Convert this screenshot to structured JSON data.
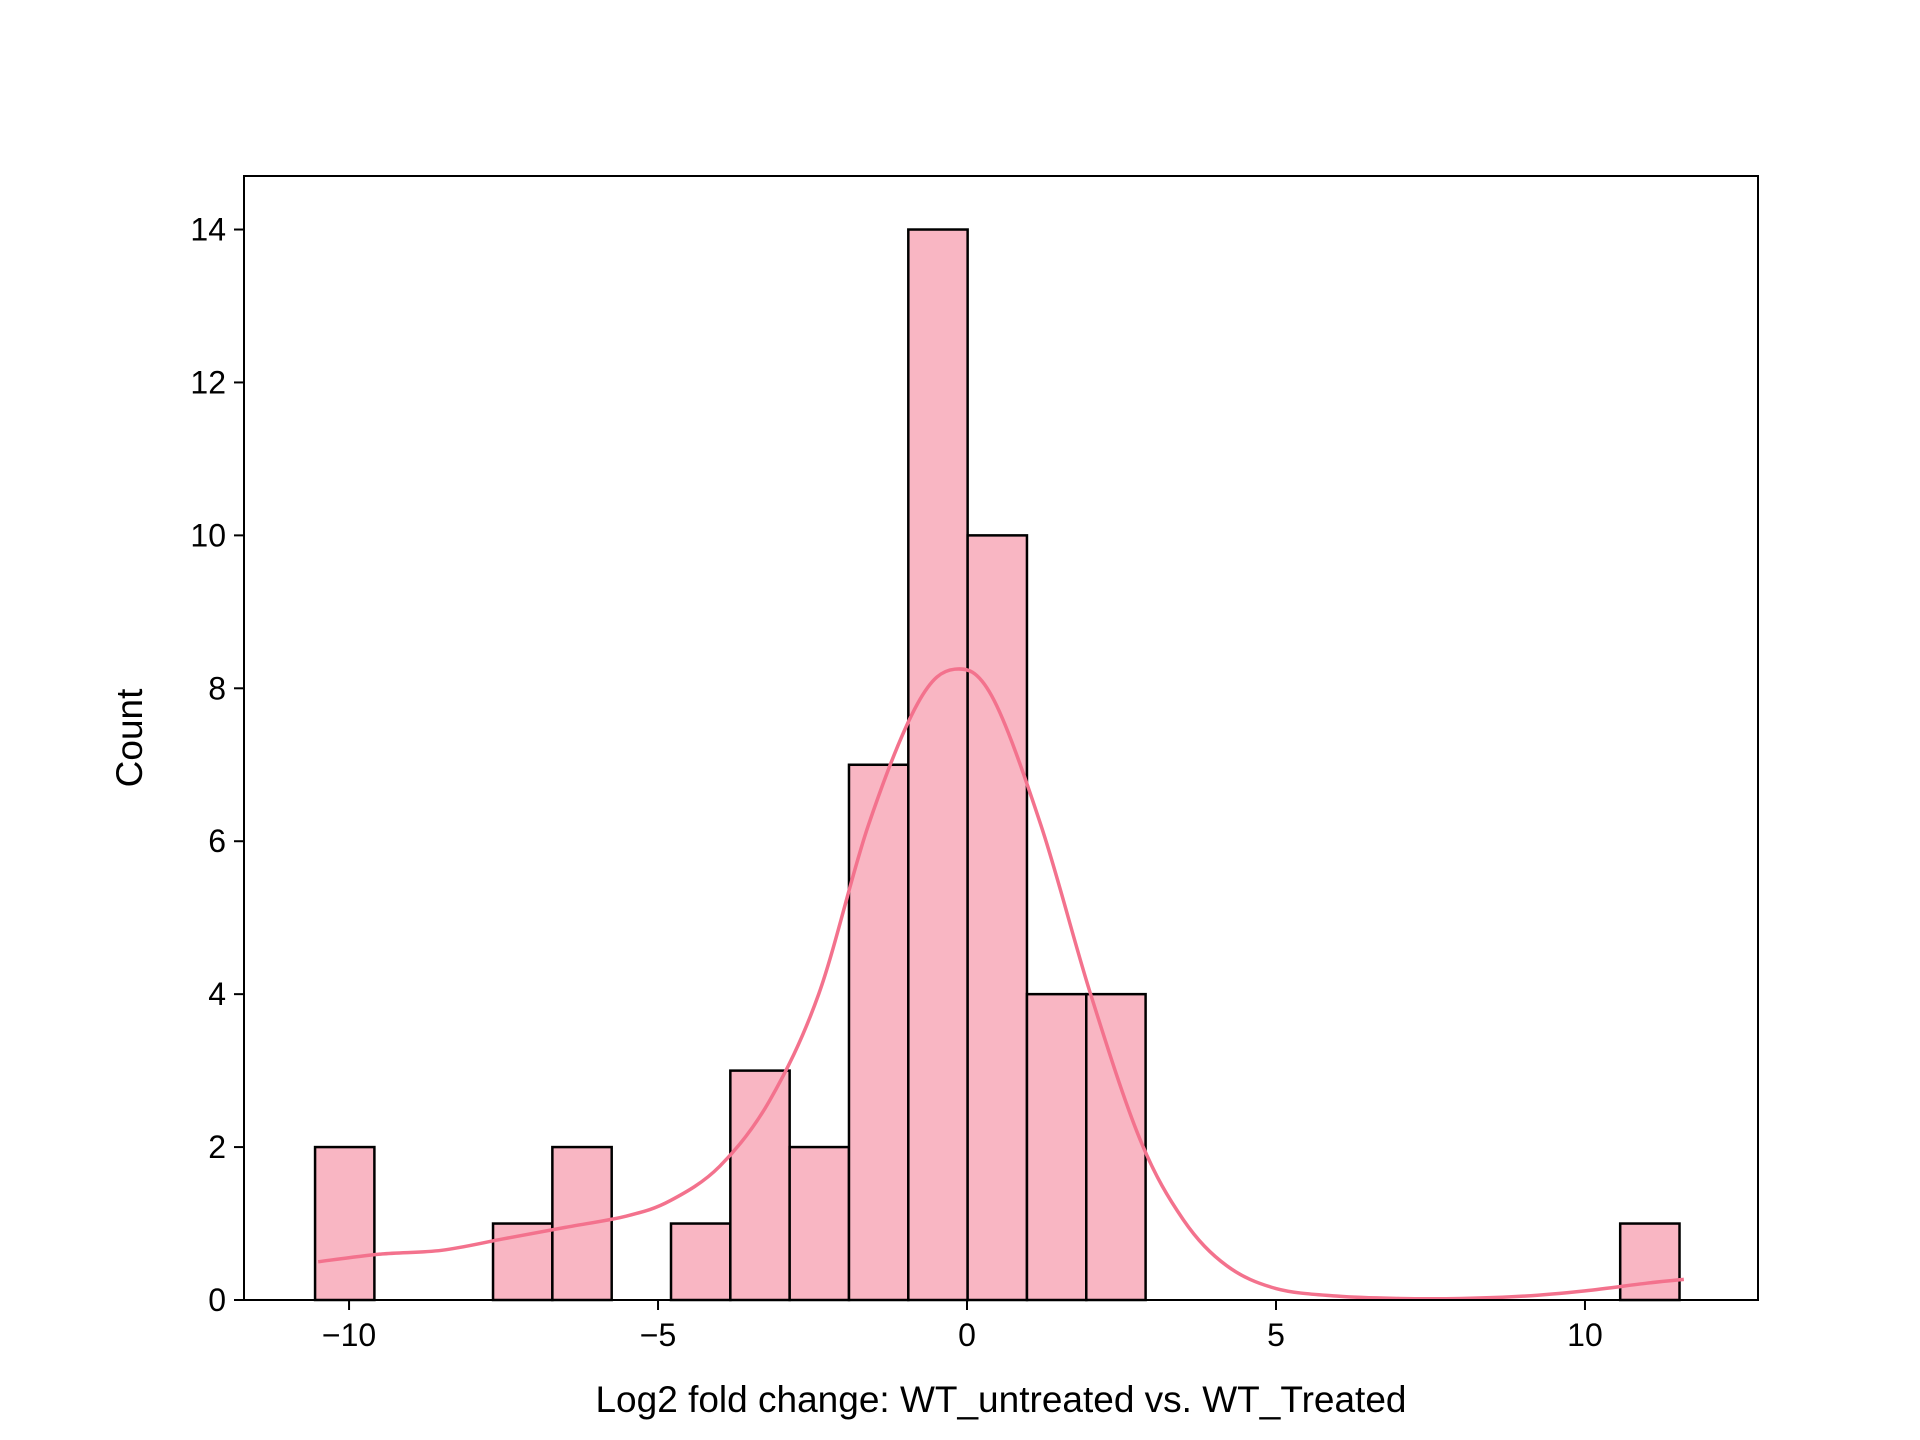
{
  "chart_data": {
    "type": "bar",
    "subtype": "histogram-with-kde",
    "title": "",
    "xlabel": "Log2 fold change: WT_untreated vs. WT_Treated",
    "ylabel": "Count",
    "xlim": [
      -11.7,
      12.8
    ],
    "ylim": [
      0,
      14.7
    ],
    "x_ticks": [
      -10,
      -5,
      0,
      5,
      10
    ],
    "x_tick_labels": [
      "−10",
      "−5",
      "0",
      "5",
      "10"
    ],
    "y_ticks": [
      0,
      2,
      4,
      6,
      8,
      10,
      12,
      14
    ],
    "y_tick_labels": [
      "0",
      "2",
      "4",
      "6",
      "8",
      "10",
      "12",
      "14"
    ],
    "grid": false,
    "legend": "none",
    "bin_edges": [
      -10.55,
      -9.59,
      -8.63,
      -7.67,
      -6.71,
      -5.75,
      -4.79,
      -3.83,
      -2.87,
      -1.91,
      -0.95,
      0.01,
      0.97,
      1.93,
      2.89,
      3.85,
      4.81,
      5.77,
      6.73,
      7.69,
      8.65,
      9.61,
      10.57,
      11.53
    ],
    "values": [
      2,
      0,
      0,
      1,
      2,
      0,
      1,
      3,
      2,
      7,
      14,
      10,
      4,
      4,
      0,
      0,
      0,
      0,
      0,
      0,
      0,
      0,
      1
    ],
    "kde": {
      "x": [
        -10.5,
        -9.5,
        -8.5,
        -7.5,
        -6.5,
        -5.5,
        -4.8,
        -4.0,
        -3.2,
        -2.4,
        -1.6,
        -0.8,
        -0.2,
        0.4,
        1.2,
        2.0,
        2.8,
        3.5,
        4.2,
        5.0,
        6.0,
        7.0,
        8.0,
        9.0,
        10.0,
        11.0,
        11.6
      ],
      "y": [
        0.5,
        0.6,
        0.65,
        0.8,
        0.95,
        1.1,
        1.3,
        1.75,
        2.6,
        4.0,
        6.2,
        7.8,
        8.25,
        7.9,
        6.2,
        4.0,
        2.1,
        1.05,
        0.45,
        0.15,
        0.05,
        0.02,
        0.02,
        0.05,
        0.12,
        0.22,
        0.27
      ]
    },
    "colors": {
      "bar_fill": "#f9b6c3",
      "bar_edge": "#000000",
      "kde_line": "#f3728d"
    }
  }
}
